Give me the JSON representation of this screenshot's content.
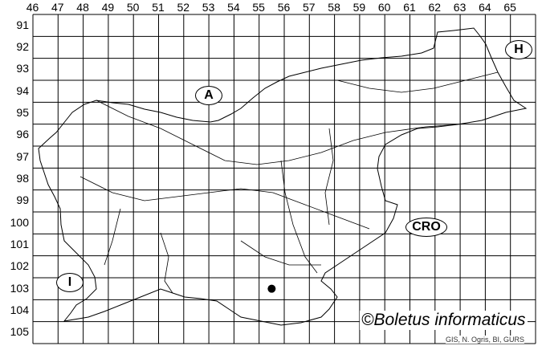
{
  "grid": {
    "columns": [
      "46",
      "47",
      "48",
      "49",
      "50",
      "51",
      "52",
      "53",
      "54",
      "55",
      "56",
      "57",
      "58",
      "59",
      "60",
      "61",
      "62",
      "63",
      "64",
      "65"
    ],
    "rows": [
      "91",
      "92",
      "93",
      "94",
      "95",
      "96",
      "97",
      "98",
      "99",
      "100",
      "101",
      "102",
      "103",
      "104",
      "105"
    ]
  },
  "regions": [
    {
      "label": "A"
    },
    {
      "label": "H"
    },
    {
      "label": "CRO"
    },
    {
      "label": "I"
    }
  ],
  "records": [
    {
      "column": "55",
      "row": "103"
    }
  ],
  "credit": "©Boletus informaticus",
  "source": "GIS, N. Ogris, BI, GURS",
  "colors": {
    "lines": "#000000",
    "record_dot": "#000000",
    "background": "#ffffff"
  }
}
